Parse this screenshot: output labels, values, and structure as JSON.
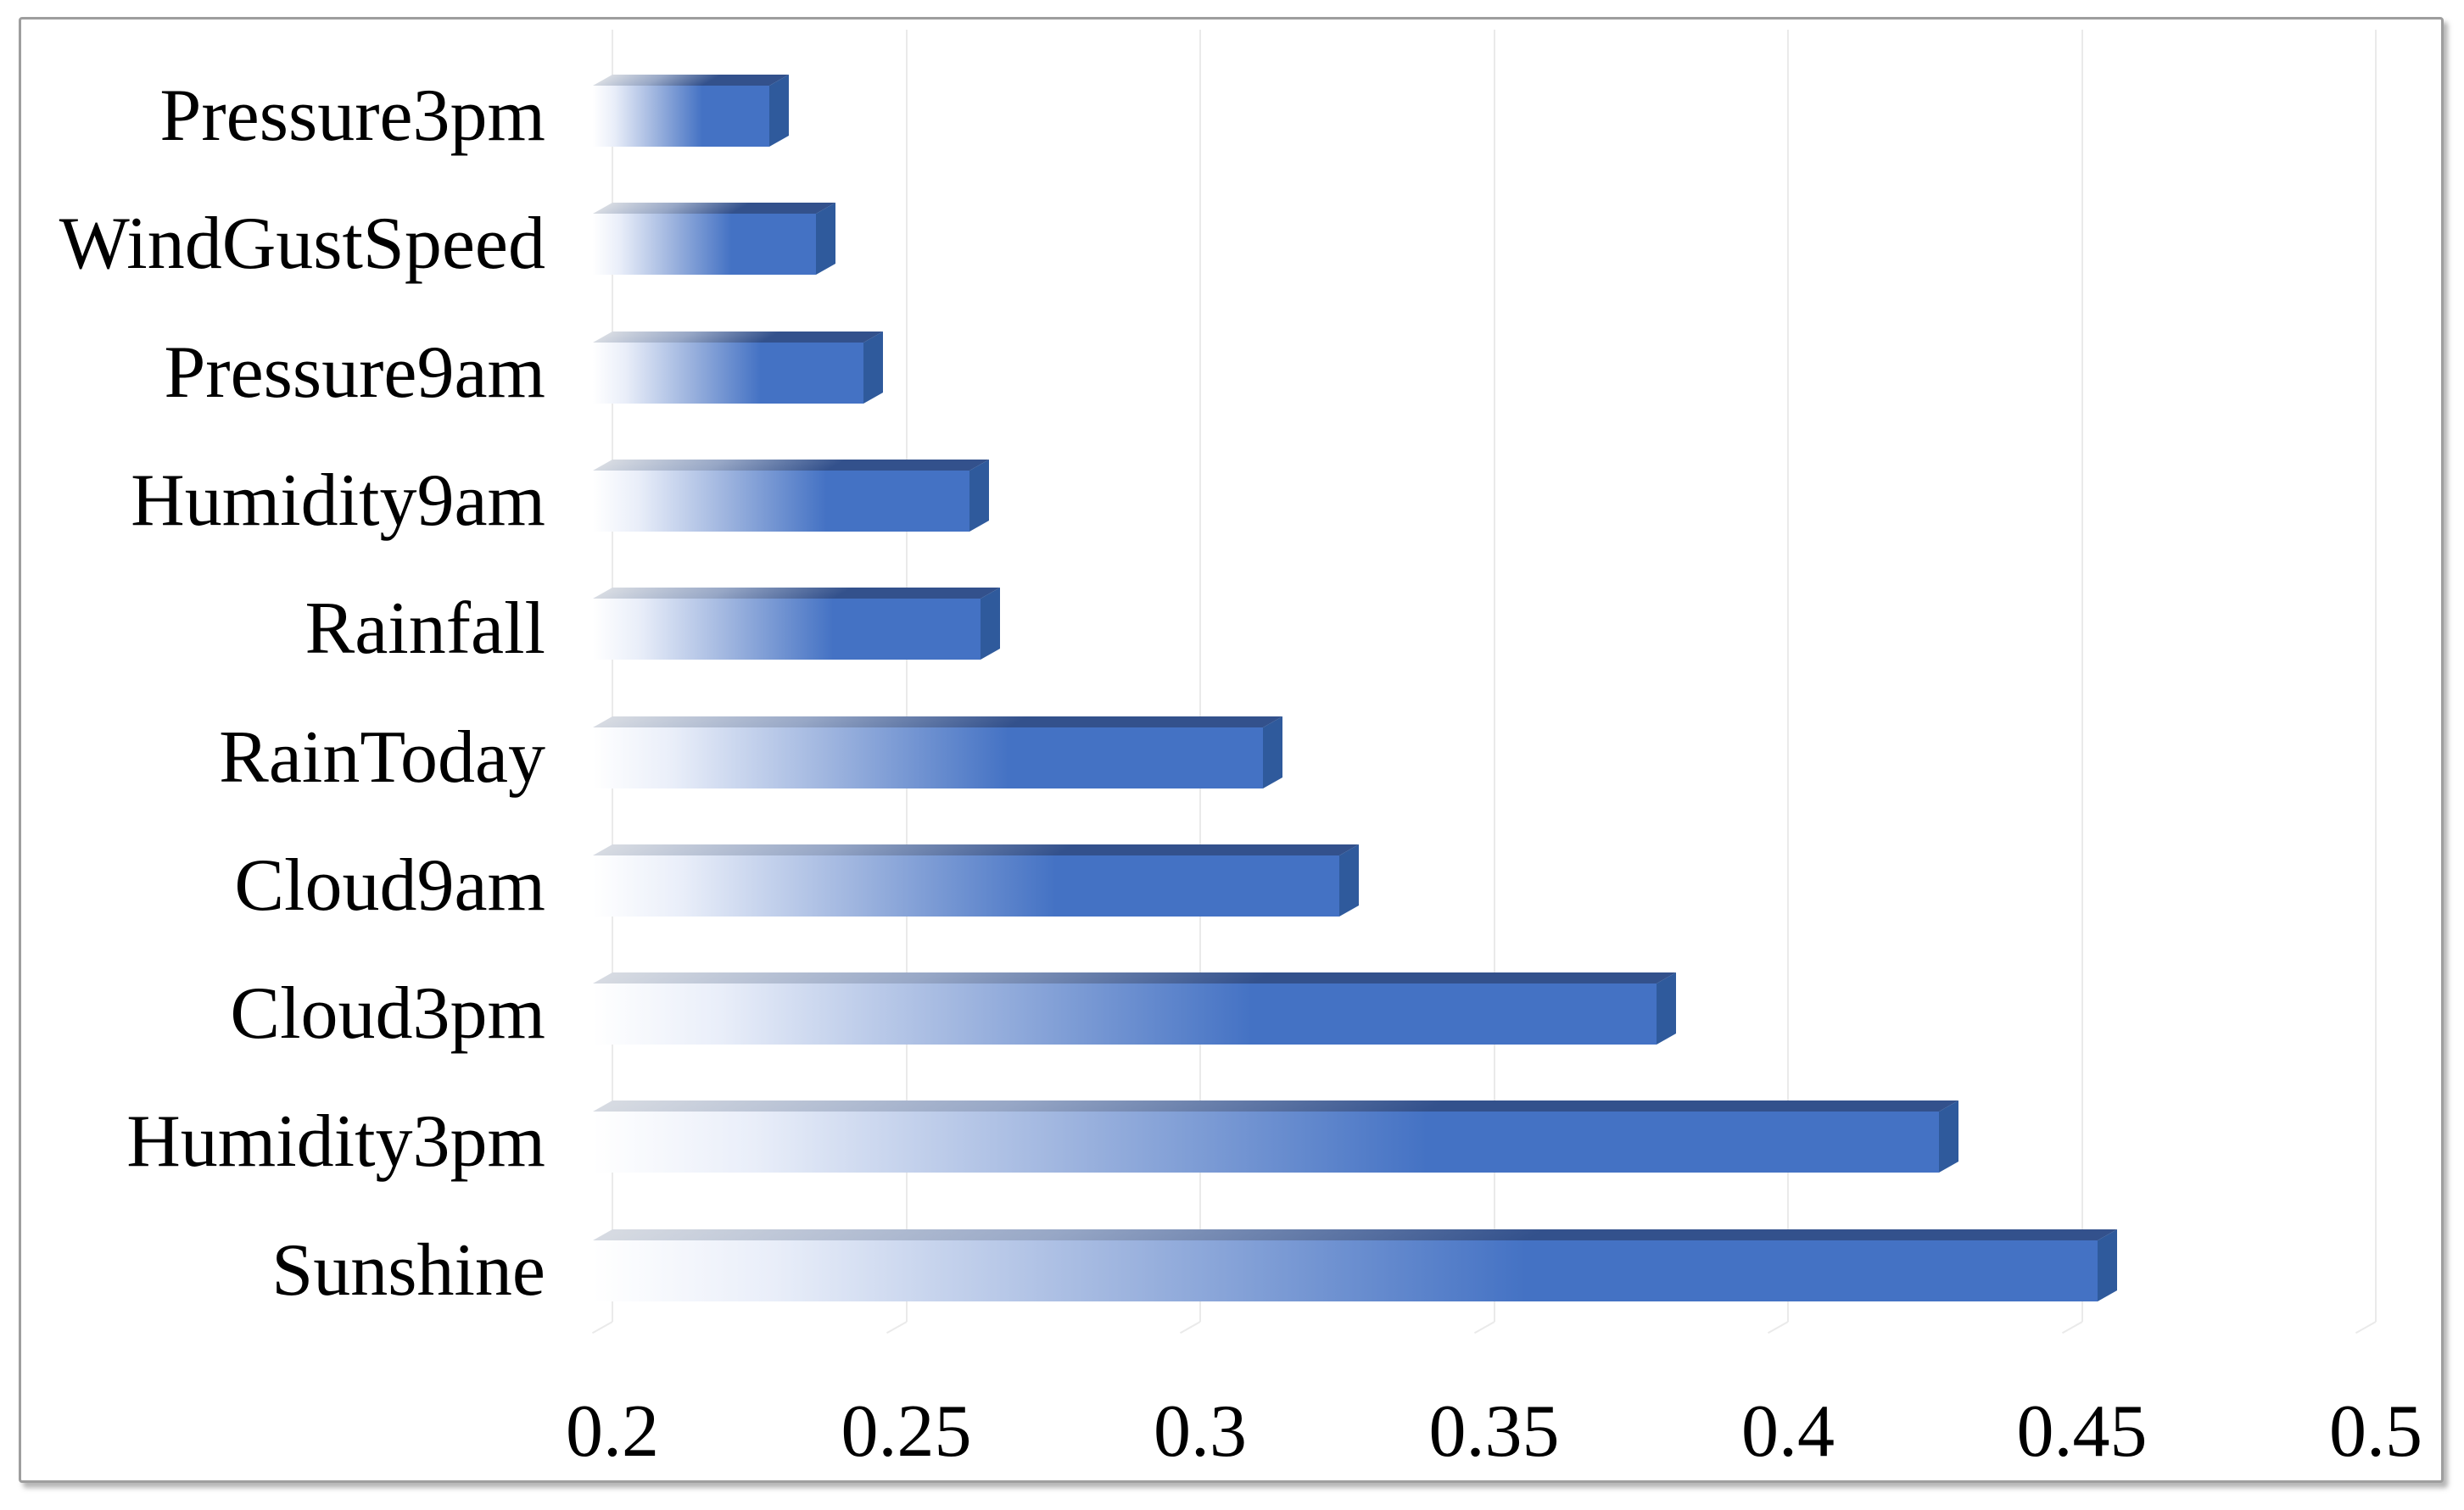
{
  "chart_data": {
    "type": "bar",
    "orientation": "horizontal",
    "title": "",
    "xlabel": "",
    "ylabel": "",
    "categories": [
      "Pressure3pm",
      "WindGustSpeed",
      "Pressure9am",
      "Humidity9am",
      "Rainfall",
      "RainToday",
      "Cloud9am",
      "Cloud3pm",
      "Humidity3pm",
      "Sunshine"
    ],
    "values": [
      0.23,
      0.238,
      0.246,
      0.264,
      0.266,
      0.314,
      0.327,
      0.381,
      0.429,
      0.456
    ],
    "xlim": [
      0.2,
      0.5
    ],
    "xticks": [
      0.2,
      0.25,
      0.3,
      0.35,
      0.4,
      0.45,
      0.5
    ],
    "xtick_labels": [
      "0.2",
      "0.25",
      "0.3",
      "0.35",
      "0.4",
      "0.45",
      "0.5"
    ],
    "grid": true,
    "legend": false,
    "style": "3d-beveled-bars",
    "colors": {
      "bar_front": "#4472c4",
      "bar_front_fade_start": "#ffffff",
      "bar_top_face": "#33518c",
      "bar_side_face": "#2f5a9c",
      "gridline": "#eaeaea",
      "text": "#000000",
      "frame_border": "#9e9e9e",
      "background": "#ffffff"
    }
  }
}
